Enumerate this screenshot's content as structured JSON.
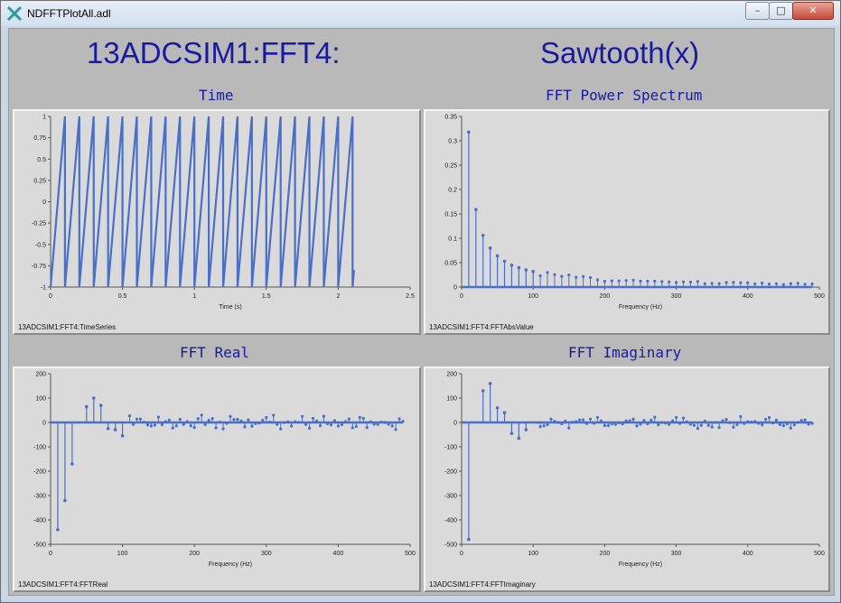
{
  "window": {
    "title": "NDFFTPlotAll.adl",
    "minimize_label": "–",
    "maximize_label": "□",
    "close_label": "✕",
    "app_icon": "x-cross-icon"
  },
  "header": {
    "pv_prefix": "13ADCSIM1:FFT4:",
    "signal_name": "Sawtooth(x)"
  },
  "colors": {
    "trace": "#4a6fc8",
    "title_text": "#1a1aa0"
  },
  "plots": {
    "time": {
      "title": "Time",
      "pv": "13ADCSIM1:FFT4:TimeSeries"
    },
    "power": {
      "title": "FFT Power Spectrum",
      "pv": "13ADCSIM1:FFT4:FFTAbsValue"
    },
    "real": {
      "title": "FFT Real",
      "pv": "13ADCSIM1:FFT4:FFTReal"
    },
    "imag": {
      "title": "FFT Imaginary",
      "pv": "13ADCSIM1:FFT4:FFTImaginary"
    }
  },
  "chart_data": [
    {
      "id": "time",
      "type": "line",
      "title": "Time",
      "xlabel": "Time (s)",
      "ylabel": "",
      "xlim": [
        0,
        2.5
      ],
      "ylim": [
        -1,
        1
      ],
      "xticks": [
        "0",
        "0.5",
        "1",
        "1.5",
        "2",
        "2.5"
      ],
      "yticks": [
        "-1",
        "-0.75",
        "-0.5",
        "-0.25",
        "0",
        "0.25",
        "0.5",
        "0.75",
        "1"
      ],
      "series": [
        {
          "kind": "sawtooth",
          "period": 0.1,
          "start": 0,
          "end": 2.1,
          "min": -1,
          "max": 1,
          "tail": -0.8
        }
      ]
    },
    {
      "id": "power",
      "type": "scatter",
      "title": "FFT Power Spectrum",
      "xlabel": "Frequency (Hz)",
      "ylabel": "",
      "xlim": [
        0,
        500
      ],
      "ylim": [
        0,
        0.35
      ],
      "xticks": [
        "0",
        "100",
        "200",
        "300",
        "400",
        "500"
      ],
      "yticks": [
        "0",
        "0.05",
        "0.1",
        "0.15",
        "0.2",
        "0.25",
        "0.3",
        "0.35"
      ],
      "series": [
        {
          "kind": "stems",
          "x": [
            10,
            20,
            30,
            40,
            50,
            60,
            70,
            80,
            90,
            100
          ],
          "y": [
            0.318,
            0.159,
            0.106,
            0.08,
            0.064,
            0.053,
            0.045,
            0.04,
            0.035,
            0.032
          ],
          "step": 10,
          "xmax": 490,
          "tail_scale": 0.318
        }
      ]
    },
    {
      "id": "real",
      "type": "scatter",
      "title": "FFT Real",
      "xlabel": "Frequency (Hz)",
      "ylabel": "",
      "xlim": [
        0,
        500
      ],
      "ylim": [
        -500,
        200
      ],
      "xticks": [
        "0",
        "100",
        "200",
        "300",
        "400",
        "500"
      ],
      "yticks": [
        "-500",
        "-400",
        "-300",
        "-200",
        "-100",
        "0",
        "100",
        "200"
      ],
      "series": [
        {
          "kind": "stems",
          "x": [
            10,
            20,
            30,
            50,
            60,
            70,
            80,
            90,
            100
          ],
          "y": [
            -440,
            -320,
            -170,
            65,
            100,
            70,
            -25,
            -30,
            -55
          ],
          "step": 5,
          "xmax": 490,
          "tail_scale": 30
        }
      ]
    },
    {
      "id": "imag",
      "type": "scatter",
      "title": "FFT Imaginary",
      "xlabel": "Frequency (Hz)",
      "ylabel": "",
      "xlim": [
        0,
        500
      ],
      "ylim": [
        -500,
        200
      ],
      "xticks": [
        "0",
        "100",
        "200",
        "300",
        "400",
        "500"
      ],
      "yticks": [
        "-500",
        "-400",
        "-300",
        "-200",
        "-100",
        "0",
        "100",
        "200"
      ],
      "series": [
        {
          "kind": "stems",
          "x": [
            10,
            30,
            40,
            50,
            60,
            70,
            80,
            90
          ],
          "y": [
            -480,
            130,
            160,
            60,
            40,
            -45,
            -65,
            -30
          ],
          "step": 5,
          "xmax": 490,
          "tail_scale": 25
        }
      ]
    }
  ]
}
